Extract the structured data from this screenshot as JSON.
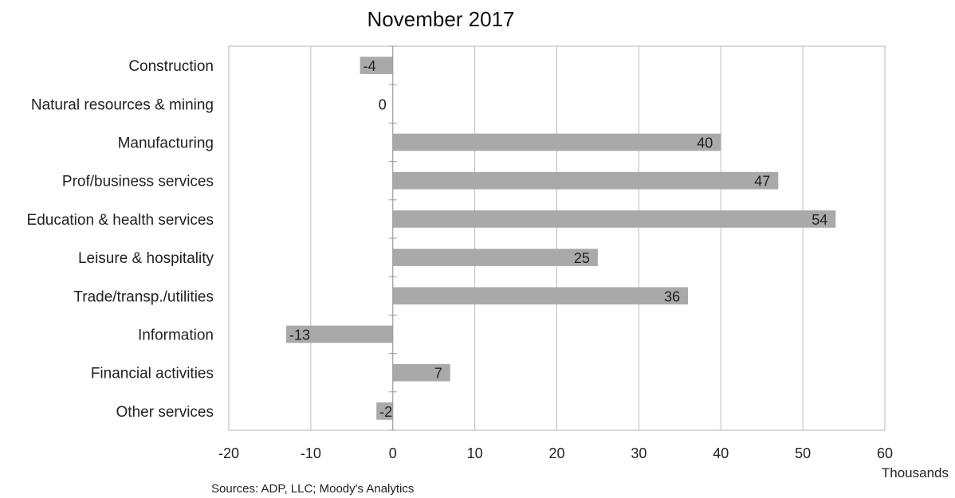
{
  "chart_data": {
    "type": "bar",
    "orientation": "horizontal",
    "title": "November 2017",
    "categories": [
      "Construction",
      "Natural resources & mining",
      "Manufacturing",
      "Prof/business services",
      "Education & health services",
      "Leisure & hospitality",
      "Trade/transp./utilities",
      "Information",
      "Financial activities",
      "Other services"
    ],
    "values": [
      -4,
      0,
      40,
      47,
      54,
      25,
      36,
      -13,
      7,
      -2
    ],
    "data_labels": [
      "-4",
      "0",
      "40",
      "47",
      "54",
      "25",
      "36",
      "-13",
      "7",
      "-2"
    ],
    "xlim": [
      -20,
      60
    ],
    "xticks": [
      -20,
      -10,
      0,
      10,
      20,
      30,
      40,
      50,
      60
    ],
    "xtick_labels": [
      "-20",
      "-10",
      "0",
      "10",
      "20",
      "30",
      "40",
      "50",
      "60"
    ],
    "x_unit": "Thousands",
    "grid": "vertical",
    "legend": "none",
    "bar_color": "#a9a9a9",
    "source": "Sources: ADP, LLC; Moody's Analytics"
  }
}
